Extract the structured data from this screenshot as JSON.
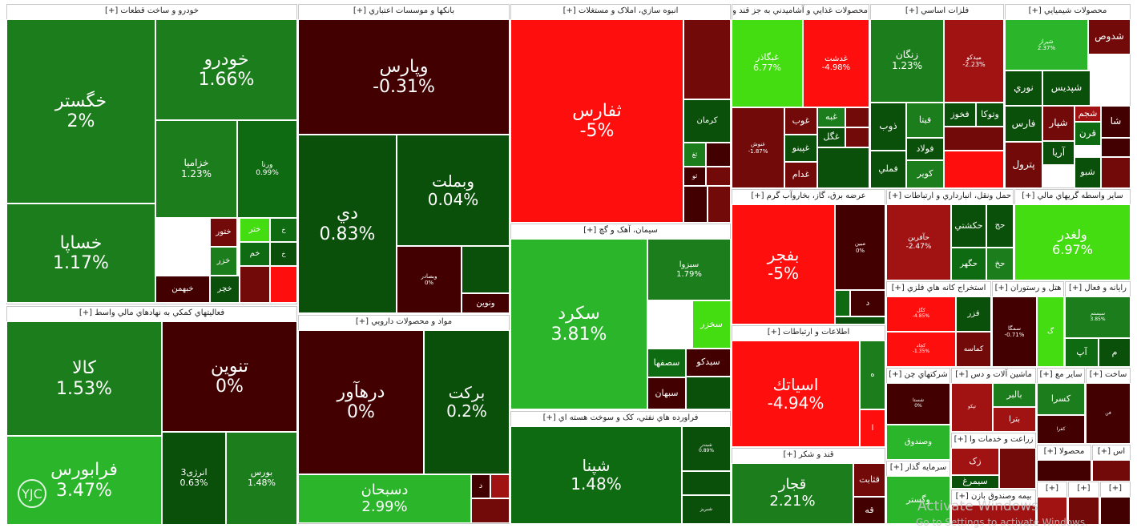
{
  "colors": {
    "deep_red": "#420000",
    "dark_red": "#730a0a",
    "red": "#a11212",
    "bright_red": "#ff0e0e",
    "dark_green": "#0a4f0a",
    "mid_green": "#0f6b12",
    "green": "#1c7d1c",
    "light_green": "#2bb52b",
    "bright_green": "#44dd11"
  },
  "chart_data": {
    "type": "heatmap",
    "sectors": [
      {
        "id": "auto",
        "name": "خودرو و ساخت قطعات [+]",
        "stocks": [
          {
            "symbol": "خگستر",
            "change": "2%"
          },
          {
            "symbol": "خساپا",
            "change": "1.17%"
          },
          {
            "symbol": "خودرو",
            "change": "1.66%"
          },
          {
            "symbol": "خزامیا",
            "change": "1.23%"
          },
          {
            "symbol": "ورنا",
            "change": "0.99%"
          },
          {
            "symbol": "ختور",
            "change": ""
          },
          {
            "symbol": "خزر",
            "change": ""
          },
          {
            "symbol": "خبهمن",
            "change": ""
          },
          {
            "symbol": "ختر",
            "change": ""
          },
          {
            "symbol": "خم",
            "change": ""
          },
          {
            "symbol": "خ",
            "change": ""
          },
          {
            "symbol": "خ",
            "change": ""
          },
          {
            "symbol": "خچر",
            "change": ""
          }
        ]
      },
      {
        "id": "banks",
        "name": "بانکها و موسسات اعتباري [+]",
        "stocks": [
          {
            "symbol": "وپارس",
            "change": "-0.31%"
          },
          {
            "symbol": "دي",
            "change": "0.83%"
          },
          {
            "symbol": "وبملت",
            "change": "0.04%"
          },
          {
            "symbol": "وبصادر",
            "change": "0%"
          },
          {
            "symbol": "ونوين",
            "change": ""
          }
        ]
      },
      {
        "id": "realestate",
        "name": "انبوه سازي، املاک و مستغلات [+]",
        "stocks": [
          {
            "symbol": "ثفارس",
            "change": "-5%"
          },
          {
            "symbol": "کرمان",
            "change": ""
          },
          {
            "symbol": "ثغ",
            "change": ""
          },
          {
            "symbol": "ثو",
            "change": ""
          }
        ]
      },
      {
        "id": "food",
        "name": "محصولات غذايي و آشاميدني به جز قند و شکر [+]",
        "stocks": [
          {
            "symbol": "غبگاذر",
            "change": "6.77%"
          },
          {
            "symbol": "غدشت",
            "change": "-4.98%"
          },
          {
            "symbol": "غنوش",
            "change": "-1.87%"
          },
          {
            "symbol": "غوب",
            "change": ""
          },
          {
            "symbol": "غبه",
            "change": ""
          },
          {
            "symbol": "غگل",
            "change": ""
          },
          {
            "symbol": "غپینو",
            "change": ""
          },
          {
            "symbol": "غدام",
            "change": ""
          }
        ]
      },
      {
        "id": "metals",
        "name": "فلزات اساسي [+]",
        "stocks": [
          {
            "symbol": "زنگان",
            "change": "1.23%"
          },
          {
            "symbol": "ميدکو",
            "change": "-2.23%"
          },
          {
            "symbol": "ذوب",
            "change": ""
          },
          {
            "symbol": "فخوز",
            "change": ""
          },
          {
            "symbol": "وتوکا",
            "change": ""
          },
          {
            "symbol": "فيتا",
            "change": ""
          },
          {
            "symbol": "فولاد",
            "change": ""
          },
          {
            "symbol": "فملي",
            "change": ""
          },
          {
            "symbol": "کوير",
            "change": ""
          }
        ]
      },
      {
        "id": "chem",
        "name": "محصولات شيميايي [+]",
        "stocks": [
          {
            "symbol": "شيراز",
            "change": "2.37%"
          },
          {
            "symbol": "شدوص",
            "change": ""
          },
          {
            "symbol": "نوري",
            "change": ""
          },
          {
            "symbol": "شپديس",
            "change": ""
          },
          {
            "symbol": "فارس",
            "change": ""
          },
          {
            "symbol": "شپار",
            "change": ""
          },
          {
            "symbol": "شجم",
            "change": ""
          },
          {
            "symbol": "شا",
            "change": ""
          },
          {
            "symbol": "آريا",
            "change": ""
          },
          {
            "symbol": "قرن",
            "change": ""
          },
          {
            "symbol": "پترول",
            "change": ""
          },
          {
            "symbol": "شبو",
            "change": ""
          }
        ]
      },
      {
        "id": "aux",
        "name": "فعاليتهاي کمکي به نهادهاي مالي واسط [+]",
        "stocks": [
          {
            "symbol": "کالا",
            "change": "1.53%"
          },
          {
            "symbol": "تنوين",
            "change": "0%"
          },
          {
            "symbol": "فرابورس",
            "change": "3.47%"
          },
          {
            "symbol": "انرژی3",
            "change": "0.63%"
          },
          {
            "symbol": "بورس",
            "change": "1.48%"
          }
        ]
      },
      {
        "id": "pharma",
        "name": "مواد و محصولات دارويي [+]",
        "stocks": [
          {
            "symbol": "درهآور",
            "change": "0%"
          },
          {
            "symbol": "برکت",
            "change": "0.2%"
          },
          {
            "symbol": "دسبحان",
            "change": "2.99%"
          },
          {
            "symbol": "د",
            "change": ""
          }
        ]
      },
      {
        "id": "cement",
        "name": "سيمان، آهک و گچ [+]",
        "stocks": [
          {
            "symbol": "سکرد",
            "change": "3.81%"
          },
          {
            "symbol": "سبزوا",
            "change": "1.79%"
          },
          {
            "symbol": "سخزر",
            "change": ""
          },
          {
            "symbol": "سيدکو",
            "change": ""
          },
          {
            "symbol": "سصفها",
            "change": ""
          },
          {
            "symbol": "سبهان",
            "change": ""
          }
        ]
      },
      {
        "id": "oil",
        "name": "فراورده هاي نفتي، کک و سوخت هسته اي [+]",
        "stocks": [
          {
            "symbol": "شپنا",
            "change": "1.48%"
          },
          {
            "symbol": "شبندر",
            "change": "0.89%"
          },
          {
            "symbol": "شبريز",
            "change": ""
          }
        ]
      },
      {
        "id": "power",
        "name": "عرضه برق، گاز، بخاروآب گرم [+]",
        "stocks": [
          {
            "symbol": "بفجر",
            "change": "-5%"
          },
          {
            "symbol": "مبين",
            "change": "0%"
          },
          {
            "symbol": "د",
            "change": ""
          }
        ]
      },
      {
        "id": "transport",
        "name": "حمل ونقل، انبارداري و ارتباطات [+]",
        "stocks": [
          {
            "symbol": "حآفرين",
            "change": "-2.47%"
          },
          {
            "symbol": "حکشتي",
            "change": ""
          },
          {
            "symbol": "حج",
            "change": ""
          },
          {
            "symbol": "حگهر",
            "change": ""
          },
          {
            "symbol": "حخ",
            "change": ""
          }
        ]
      },
      {
        "id": "fin",
        "name": "ساير واسطه گريهاي مالي [+]",
        "stocks": [
          {
            "symbol": "ولغدر",
            "change": "6.97%"
          }
        ]
      },
      {
        "id": "it",
        "name": "اطلاعات و ارتباطات [+]",
        "stocks": [
          {
            "symbol": "اسياتك",
            "change": "-4.94%"
          },
          {
            "symbol": "ه",
            "change": ""
          },
          {
            "symbol": "ا",
            "change": ""
          }
        ]
      },
      {
        "id": "mining",
        "name": "استخراج کانه هاي فلزي [+]",
        "stocks": [
          {
            "symbol": "کگل",
            "change": "-4.85%"
          },
          {
            "symbol": "کچاد",
            "change": "-1.35%"
          },
          {
            "symbol": "فزر",
            "change": ""
          },
          {
            "symbol": "کماسه",
            "change": ""
          }
        ]
      },
      {
        "id": "hotel",
        "name": "هتل و رستوران [+]",
        "stocks": [
          {
            "symbol": "سمگا",
            "change": "-0.71%"
          },
          {
            "symbol": "گ",
            "change": ""
          }
        ]
      },
      {
        "id": "comp",
        "name": "رايانه و فعال [+]",
        "stocks": [
          {
            "symbol": "سيستم",
            "change": "3.85%"
          },
          {
            "symbol": "آپ",
            "change": ""
          },
          {
            "symbol": "م",
            "change": ""
          }
        ]
      },
      {
        "id": "sugar",
        "name": "قند و شکر [+]",
        "stocks": [
          {
            "symbol": "قجار",
            "change": "2.21%"
          },
          {
            "symbol": "قثابت",
            "change": ""
          },
          {
            "symbol": "قه",
            "change": ""
          }
        ]
      },
      {
        "id": "multi",
        "name": "شرکتهاي چن [+]",
        "stocks": [
          {
            "symbol": "وصندوق",
            "change": ""
          },
          {
            "symbol": "شستا",
            "change": "0%"
          }
        ]
      },
      {
        "id": "mach",
        "name": "ماشين آلات و دس [+]",
        "stocks": [
          {
            "symbol": "تپکو",
            "change": ""
          },
          {
            "symbol": "بالبر",
            "change": ""
          },
          {
            "symbol": "بترا",
            "change": ""
          }
        ]
      },
      {
        "id": "othermin",
        "name": "ساير مع [+]",
        "stocks": [
          {
            "symbol": "کسرا",
            "change": ""
          },
          {
            "symbol": "کفرا",
            "change": ""
          }
        ]
      },
      {
        "id": "build",
        "name": "ساخت [+]",
        "stocks": [
          {
            "symbol": "فن",
            "change": ""
          }
        ]
      },
      {
        "id": "agri",
        "name": "زراعت و خدمات وا [+]",
        "stocks": [
          {
            "symbol": "زک",
            "change": ""
          },
          {
            "symbol": "سيمرغ",
            "change": ""
          }
        ]
      },
      {
        "id": "invest",
        "name": "سرمايه گذار [+]",
        "stocks": [
          {
            "symbol": "وگستر",
            "change": ""
          }
        ]
      },
      {
        "id": "insure",
        "name": "بيمه وصندوق بازن [+]",
        "stocks": []
      },
      {
        "id": "mahs",
        "name": "محصولا [+]",
        "stocks": []
      },
      {
        "id": "as",
        "name": "اس [+]",
        "stocks": []
      },
      {
        "id": "s1",
        "name": "[+]",
        "stocks": []
      },
      {
        "id": "s2",
        "name": "[+]",
        "stocks": []
      },
      {
        "id": "s3",
        "name": "[+]",
        "stocks": []
      }
    ]
  },
  "logo": {
    "text": "YJC"
  },
  "watermark": {
    "line1": "Activate Windows",
    "line2": "Go to Settings to activate Windows."
  }
}
